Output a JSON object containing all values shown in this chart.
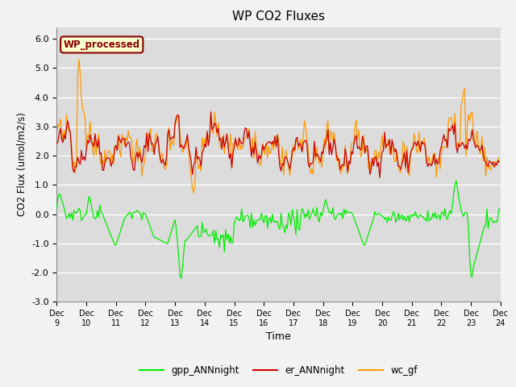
{
  "title": "WP CO2 Fluxes",
  "xlabel": "Time",
  "ylabel": "CO2 Flux (umol/m2/s)",
  "ylim": [
    -3.0,
    6.4
  ],
  "yticks": [
    -3.0,
    -2.0,
    -1.0,
    0.0,
    1.0,
    2.0,
    3.0,
    4.0,
    5.0,
    6.0
  ],
  "xlim": [
    0,
    360
  ],
  "n_points": 360,
  "color_gpp": "#00ee00",
  "color_er": "#cc0000",
  "color_wc": "#ff9900",
  "legend_labels": [
    "gpp_ANNnight",
    "er_ANNnight",
    "wc_gf"
  ],
  "watermark_text": "WP_processed",
  "watermark_color": "#880000",
  "watermark_bg": "#ffffcc",
  "plot_bg": "#dcdcdc",
  "fig_bg": "#f2f2f2",
  "grid_color": "#ffffff",
  "xtick_labels": [
    "Dec 9",
    "Dec 10",
    "Dec 11",
    "Dec 12",
    "Dec 13",
    "Dec 14",
    "Dec 15",
    "Dec 16",
    "Dec 17",
    "Dec 18",
    "Dec 19",
    "Dec 20",
    "Dec 21",
    "Dec 22",
    "Dec 23",
    "Dec 24"
  ],
  "xtick_positions": [
    0,
    24,
    48,
    72,
    96,
    120,
    144,
    168,
    192,
    216,
    240,
    264,
    288,
    312,
    336,
    360
  ]
}
